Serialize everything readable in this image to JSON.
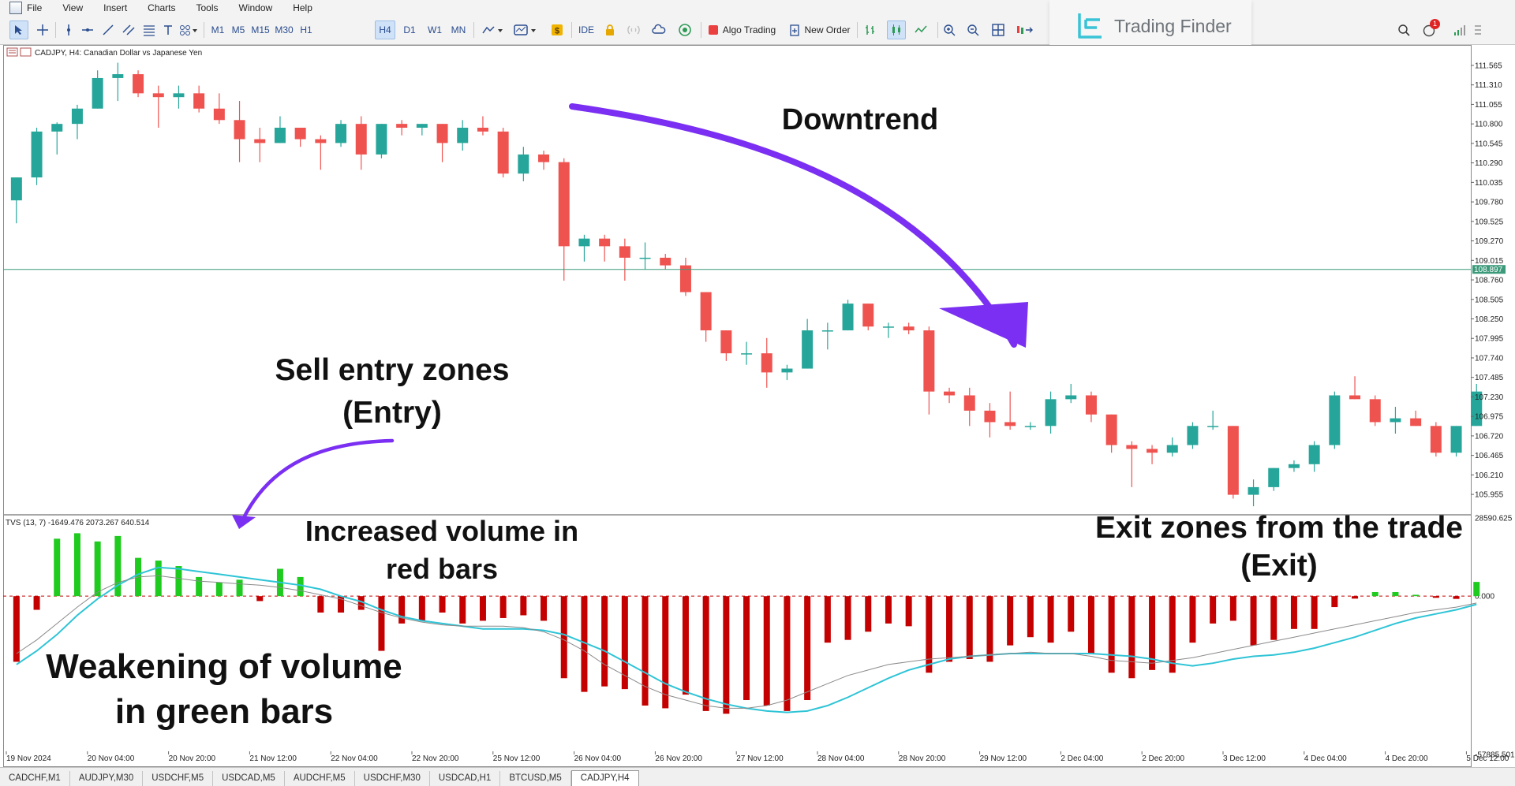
{
  "menu": [
    "File",
    "View",
    "Insert",
    "Charts",
    "Tools",
    "Window",
    "Help"
  ],
  "toolbar": {
    "timeframes": [
      "M1",
      "M5",
      "M15",
      "M30",
      "H1",
      "H4",
      "D1",
      "W1",
      "MN"
    ],
    "active_timeframe": "H4",
    "ide_label": "IDE",
    "algo_trading_label": "Algo Trading",
    "new_order_label": "New Order",
    "notification_count": "1"
  },
  "logo": {
    "text": "Trading Finder"
  },
  "chart": {
    "header": "CADJPY, H4:  Canadian Dollar vs Japanese Yen",
    "symbol": "CADJPY",
    "timeframe": "H4",
    "current_price": "108.897",
    "colors": {
      "bull": "#26a69a",
      "bear": "#ef5350",
      "vol_up": "#1ecb1e",
      "vol_down": "#c40000",
      "signal_cyan": "#2ec4d6",
      "arrow": "#7a2ff2",
      "hline": "#3b9a7a"
    }
  },
  "indicator": {
    "header": "TVS (13, 7) -1649.476 2073.267 640.514",
    "name": "TVS",
    "params": "13, 7",
    "values": [
      "-1649.476",
      "2073.267",
      "640.514"
    ],
    "axis_top": "28590.625",
    "axis_zero": "0.000",
    "axis_bottom": "-57885.501"
  },
  "annotations": {
    "downtrend": "Downtrend",
    "sell_entry_line1": "Sell entry zones",
    "sell_entry_line2": "(Entry)",
    "increased_line1": "Increased volume in",
    "increased_line2": "red bars",
    "exit_line1": "Exit zones from the trade",
    "exit_line2": "(Exit)",
    "weakening_line1": "Weakening of volume",
    "weakening_line2": "in green bars"
  },
  "tabs": [
    "CADCHF,M1",
    "AUDJPY,M30",
    "USDCHF,M5",
    "USDCAD,M5",
    "AUDCHF,M5",
    "USDCHF,M30",
    "USDCAD,H1",
    "BTCUSD,M5",
    "CADJPY,H4"
  ],
  "active_tab": "CADJPY,H4",
  "chart_data": [
    {
      "type": "candlestick",
      "title": "CADJPY, H4: Canadian Dollar vs Japanese Yen",
      "ylim": [
        105.75,
        111.75
      ],
      "y_ticks": [
        "111.565",
        "111.310",
        "111.055",
        "110.800",
        "110.545",
        "110.290",
        "110.035",
        "109.780",
        "109.525",
        "109.270",
        "109.015",
        "108.760",
        "108.505",
        "108.250",
        "107.995",
        "107.740",
        "107.485",
        "107.230",
        "106.975",
        "106.720",
        "106.465",
        "106.210",
        "105.955"
      ],
      "x_ticks": [
        "19 Nov 2024",
        "20 Nov 04:00",
        "20 Nov 20:00",
        "21 Nov 12:00",
        "22 Nov 04:00",
        "22 Nov 20:00",
        "25 Nov 12:00",
        "26 Nov 04:00",
        "26 Nov 20:00",
        "27 Nov 12:00",
        "28 Nov 04:00",
        "28 Nov 20:00",
        "29 Nov 12:00",
        "2 Dec 04:00",
        "2 Dec 20:00",
        "3 Dec 12:00",
        "4 Dec 04:00",
        "4 Dec 20:00",
        "5 Dec 12:00"
      ],
      "candles": [
        [
          109.8,
          110.1,
          109.5,
          110.1
        ],
        [
          110.1,
          110.75,
          110.0,
          110.7
        ],
        [
          110.7,
          110.82,
          110.4,
          110.8
        ],
        [
          110.8,
          111.05,
          110.6,
          111.0
        ],
        [
          111.0,
          111.5,
          111.0,
          111.4
        ],
        [
          111.4,
          111.6,
          111.1,
          111.45
        ],
        [
          111.45,
          111.5,
          111.15,
          111.2
        ],
        [
          111.2,
          111.3,
          110.75,
          111.15
        ],
        [
          111.15,
          111.3,
          111.0,
          111.2
        ],
        [
          111.2,
          111.3,
          110.95,
          111.0
        ],
        [
          111.0,
          111.2,
          110.8,
          110.85
        ],
        [
          110.85,
          111.1,
          110.3,
          110.6
        ],
        [
          110.6,
          110.75,
          110.3,
          110.55
        ],
        [
          110.55,
          110.9,
          110.55,
          110.75
        ],
        [
          110.75,
          110.75,
          110.5,
          110.6
        ],
        [
          110.6,
          110.65,
          110.2,
          110.55
        ],
        [
          110.55,
          110.85,
          110.5,
          110.8
        ],
        [
          110.8,
          110.9,
          110.2,
          110.4
        ],
        [
          110.4,
          110.8,
          110.35,
          110.8
        ],
        [
          110.8,
          110.85,
          110.65,
          110.75
        ],
        [
          110.75,
          110.8,
          110.65,
          110.8
        ],
        [
          110.8,
          110.8,
          110.3,
          110.55
        ],
        [
          110.55,
          110.85,
          110.45,
          110.75
        ],
        [
          110.75,
          110.9,
          110.65,
          110.7
        ],
        [
          110.7,
          110.75,
          110.1,
          110.15
        ],
        [
          110.15,
          110.5,
          110.05,
          110.4
        ],
        [
          110.4,
          110.45,
          110.2,
          110.3
        ],
        [
          110.3,
          110.35,
          108.75,
          109.2
        ],
        [
          109.2,
          109.35,
          109.0,
          109.3
        ],
        [
          109.3,
          109.35,
          109.0,
          109.2
        ],
        [
          109.2,
          109.3,
          108.75,
          109.05
        ],
        [
          109.05,
          109.25,
          108.9,
          109.05
        ],
        [
          109.05,
          109.1,
          108.9,
          108.95
        ],
        [
          108.95,
          109.05,
          108.55,
          108.6
        ],
        [
          108.6,
          108.6,
          107.95,
          108.1
        ],
        [
          108.1,
          108.1,
          107.7,
          107.8
        ],
        [
          107.8,
          107.95,
          107.65,
          107.8
        ],
        [
          107.8,
          108.0,
          107.35,
          107.55
        ],
        [
          107.55,
          107.65,
          107.45,
          107.6
        ],
        [
          107.6,
          108.25,
          107.6,
          108.1
        ],
        [
          108.1,
          108.2,
          107.85,
          108.1
        ],
        [
          108.1,
          108.5,
          108.1,
          108.45
        ],
        [
          108.45,
          108.45,
          108.1,
          108.15
        ],
        [
          108.15,
          108.2,
          108.0,
          108.15
        ],
        [
          108.15,
          108.2,
          108.05,
          108.1
        ],
        [
          108.1,
          108.15,
          107.0,
          107.3
        ],
        [
          107.3,
          107.35,
          107.15,
          107.25
        ],
        [
          107.25,
          107.35,
          106.85,
          107.05
        ],
        [
          107.05,
          107.15,
          106.7,
          106.9
        ],
        [
          106.9,
          107.3,
          106.8,
          106.85
        ],
        [
          106.85,
          106.9,
          106.8,
          106.85
        ],
        [
          106.85,
          107.3,
          106.75,
          107.2
        ],
        [
          107.2,
          107.4,
          107.15,
          107.25
        ],
        [
          107.25,
          107.3,
          106.9,
          107.0
        ],
        [
          107.0,
          107.0,
          106.5,
          106.6
        ],
        [
          106.6,
          106.65,
          106.05,
          106.55
        ],
        [
          106.55,
          106.6,
          106.35,
          106.5
        ],
        [
          106.5,
          106.7,
          106.45,
          106.6
        ],
        [
          106.6,
          106.9,
          106.55,
          106.85
        ],
        [
          106.85,
          107.05,
          106.8,
          106.85
        ],
        [
          106.85,
          106.85,
          105.9,
          105.95
        ],
        [
          105.95,
          106.15,
          105.8,
          106.05
        ],
        [
          106.05,
          106.3,
          106.0,
          106.3
        ],
        [
          106.3,
          106.4,
          106.25,
          106.35
        ],
        [
          106.35,
          106.65,
          106.25,
          106.6
        ],
        [
          106.6,
          107.3,
          106.55,
          107.25
        ],
        [
          107.25,
          107.5,
          107.2,
          107.2
        ],
        [
          107.2,
          107.25,
          106.85,
          106.9
        ],
        [
          106.9,
          107.1,
          106.75,
          106.95
        ],
        [
          106.95,
          107.05,
          106.85,
          106.85
        ],
        [
          106.85,
          106.9,
          106.45,
          106.5
        ],
        [
          106.5,
          106.85,
          106.45,
          106.85
        ],
        [
          106.85,
          107.4,
          106.85,
          107.3
        ]
      ]
    },
    {
      "type": "bar",
      "title": "TVS (13, 7)",
      "ylim": [
        -57885.501,
        28590.625
      ],
      "series": [
        {
          "name": "volume",
          "values": [
            -24000,
            -5000,
            21000,
            23000,
            20000,
            22000,
            14000,
            13000,
            11000,
            7000,
            5000,
            6000,
            -1800,
            10000,
            7000,
            -6000,
            -6000,
            -5000,
            -20000,
            -10000,
            -9000,
            -6000,
            -10000,
            -9000,
            -8000,
            -7000,
            -9000,
            -30000,
            -35000,
            -33000,
            -34000,
            -40000,
            -41000,
            -36000,
            -42000,
            -43000,
            -38000,
            -40000,
            -42000,
            -38000,
            -17000,
            -16000,
            -13000,
            -10000,
            -11000,
            -28000,
            -24000,
            -23000,
            -24000,
            -18000,
            -15000,
            -17000,
            -13000,
            -21000,
            -28000,
            -30000,
            -27000,
            -28000,
            -17000,
            -10000,
            -9000,
            -18000,
            -16000,
            -12000,
            -12000,
            -4000,
            -900,
            1500,
            1500,
            500,
            -600,
            -1000,
            5200
          ]
        },
        {
          "name": "signal",
          "values": [
            -25000,
            -20000,
            -14000,
            -7000,
            -1000,
            4000,
            8000,
            10500,
            10000,
            9000,
            8000,
            7000,
            6000,
            5000,
            4000,
            2500,
            0,
            -2000,
            -5000,
            -7500,
            -9000,
            -10000,
            -11000,
            -12000,
            -12000,
            -12000,
            -12500,
            -14000,
            -17000,
            -20000,
            -24000,
            -28000,
            -32000,
            -35000,
            -37500,
            -39500,
            -41000,
            -42000,
            -42500,
            -42000,
            -40000,
            -37000,
            -33500,
            -30000,
            -27000,
            -25000,
            -23000,
            -22000,
            -21500,
            -21000,
            -21000,
            -21000,
            -21000,
            -21000,
            -21500,
            -22000,
            -23000,
            -24500,
            -25500,
            -24500,
            -23000,
            -22000,
            -21500,
            -20500,
            -19000,
            -17000,
            -15000,
            -12500,
            -10000,
            -8000,
            -6500,
            -5000,
            -3000
          ]
        },
        {
          "name": "average",
          "values": [
            -21000,
            -16000,
            -10000,
            -4000,
            1500,
            5000,
            7000,
            7500,
            6500,
            5500,
            5000,
            4500,
            4000,
            3200,
            2000,
            500,
            -1000,
            -3500,
            -6000,
            -8000,
            -9500,
            -10500,
            -11000,
            -11000,
            -11000,
            -11500,
            -13000,
            -16000,
            -20000,
            -25000,
            -29000,
            -33000,
            -36000,
            -38000,
            -40000,
            -41000,
            -41000,
            -40000,
            -38000,
            -35000,
            -32000,
            -29000,
            -27000,
            -25000,
            -24000,
            -23000,
            -22500,
            -22000,
            -21500,
            -21000,
            -20500,
            -21000,
            -21000,
            -22000,
            -23500,
            -24000,
            -24500,
            -23500,
            -22500,
            -21000,
            -19500,
            -18000,
            -16500,
            -15000,
            -13500,
            -12000,
            -10500,
            -9000,
            -7500,
            -6000,
            -5000,
            -4000,
            -2500
          ]
        }
      ]
    }
  ]
}
